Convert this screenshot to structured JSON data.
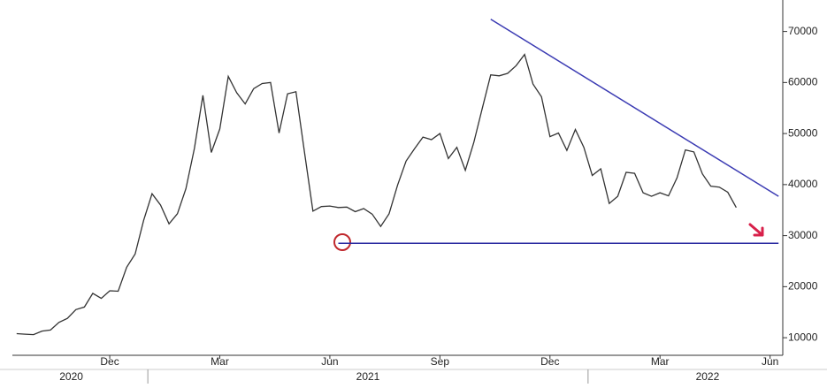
{
  "chart_data": {
    "type": "line",
    "categories": [
      null,
      null,
      null,
      null,
      null,
      null,
      null,
      null,
      null,
      null,
      null,
      "Dec",
      null,
      null,
      null,
      null,
      null,
      null,
      null,
      null,
      null,
      null,
      null,
      null,
      "Mar",
      null,
      null,
      null,
      null,
      null,
      null,
      null,
      null,
      null,
      null,
      null,
      null,
      "Jun",
      null,
      null,
      null,
      null,
      null,
      null,
      null,
      null,
      null,
      null,
      null,
      null,
      "Sep",
      null,
      null,
      null,
      null,
      null,
      null,
      null,
      null,
      null,
      null,
      null,
      null,
      "Dec",
      null,
      null,
      null,
      null,
      null,
      null,
      null,
      null,
      null,
      null,
      null,
      null,
      "Mar",
      null,
      null,
      null,
      null,
      null,
      null,
      null,
      null,
      null,
      null,
      null,
      null,
      "Jun",
      null
    ],
    "series": [
      {
        "color": "#333333",
        "values": [
          10800,
          10700,
          10600,
          11300,
          11500,
          13000,
          13800,
          15500,
          16000,
          18700,
          17700,
          19200,
          19100,
          23800,
          26400,
          33000,
          38200,
          36000,
          32300,
          34300,
          39200,
          47100,
          57500,
          46300,
          50900,
          61200,
          58000,
          55800,
          58800,
          59800,
          60000,
          50100,
          57800,
          58200,
          46400,
          34800,
          35700,
          35800,
          35500,
          35600,
          34700,
          35300,
          34200,
          31800,
          34300,
          39900,
          44600,
          47000,
          49300,
          48800,
          50000,
          45100,
          47300,
          42800,
          48200,
          54900,
          61500,
          61300,
          61800,
          63300,
          65500,
          59700,
          57200,
          49400,
          50100,
          46700,
          50800,
          47300,
          41800,
          43100,
          36300,
          37700,
          42400,
          42200,
          38400,
          37700,
          38400,
          37800,
          41300,
          46800,
          46400,
          42100,
          39700,
          39500,
          38500,
          35500,
          null,
          null,
          null,
          null,
          null
        ]
      }
    ],
    "year_labels": [
      "2020",
      "2021",
      "2022"
    ],
    "trend_lines": [
      {
        "color": "#3b3bb3",
        "x": [
          56,
          90
        ],
        "values": [
          72400,
          37700
        ]
      },
      {
        "color": "#2b2ba0",
        "x": [
          38,
          90
        ],
        "values": [
          28500,
          28500
        ]
      }
    ],
    "ylim": [
      6900,
      75300
    ],
    "yticks": [
      10000,
      20000,
      30000,
      40000,
      50000,
      60000,
      70000
    ],
    "grid": false
  }
}
